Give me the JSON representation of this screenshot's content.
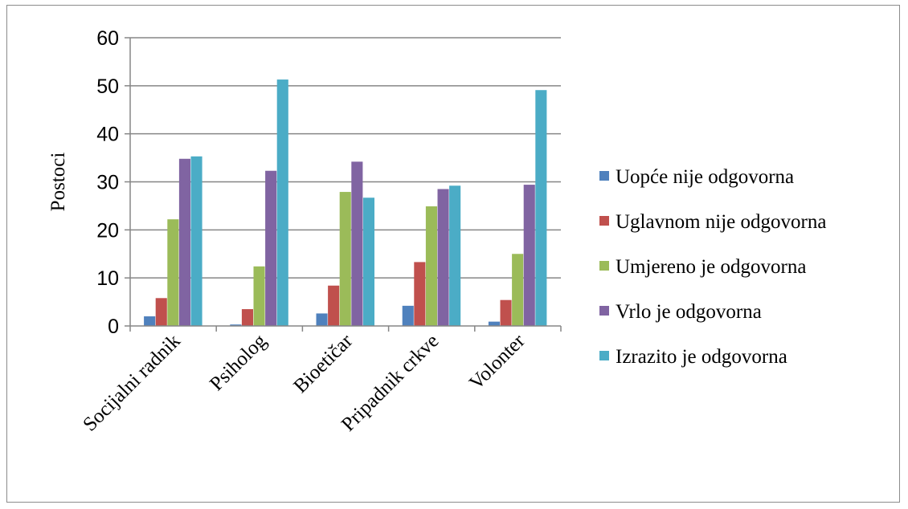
{
  "chart_data": {
    "type": "bar",
    "title": "",
    "xlabel": "",
    "ylabel": "Postoci",
    "ylim": [
      0,
      60
    ],
    "yticks": [
      0,
      10,
      20,
      30,
      40,
      50,
      60
    ],
    "grid": true,
    "legend_position": "right",
    "categories": [
      "Socijalni radnik",
      "Psiholog",
      "Bioetičar",
      "Pripadnik crkve",
      "Volonter"
    ],
    "series": [
      {
        "name": "Uopće nije odgovorna",
        "color": "#4F81BD",
        "values": [
          2.0,
          0.3,
          2.6,
          4.2,
          0.9
        ]
      },
      {
        "name": "Uglavnom nije odgovorna",
        "color": "#C0504D",
        "values": [
          5.8,
          3.5,
          8.4,
          13.3,
          5.4
        ]
      },
      {
        "name": "Umjereno je odgovorna",
        "color": "#9BBB59",
        "values": [
          22.2,
          12.4,
          27.9,
          24.9,
          15.0
        ]
      },
      {
        "name": "Vrlo je odgovorna",
        "color": "#8064A2",
        "values": [
          34.8,
          32.3,
          34.2,
          28.5,
          29.4
        ]
      },
      {
        "name": "Izrazito je odgovorna",
        "color": "#4BACC6",
        "values": [
          35.3,
          51.3,
          26.7,
          29.2,
          49.1
        ]
      }
    ]
  }
}
